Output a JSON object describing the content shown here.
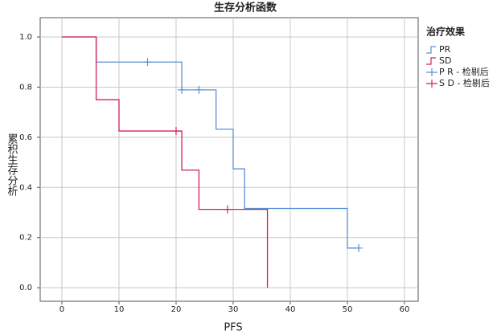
{
  "chart_data": {
    "type": "step",
    "title": "生存分析函数",
    "x_label": "PFS",
    "y_label": "累积生存分析",
    "legend_title": "治疗效果",
    "legend_position": "right",
    "grid": true,
    "xlim": [
      -3.8,
      62.4
    ],
    "xticks": [
      0,
      10,
      20,
      30,
      40,
      50,
      60
    ],
    "ylim": [
      -0.054,
      1.077
    ],
    "yticks": [
      {
        "value": 0,
        "label": "0.0"
      },
      0.2,
      0.4,
      0.6,
      0.8,
      {
        "value": 1,
        "label": "1.0"
      }
    ],
    "series": [
      {
        "name": "PR",
        "color": "#5b8fd6",
        "style": "step",
        "x": [
          0,
          6,
          21,
          27,
          30,
          32,
          50,
          52
        ],
        "values": [
          1,
          0.9,
          0.789,
          0.632,
          0.474,
          0.316,
          0.158,
          0.158
        ]
      },
      {
        "name": "SD",
        "color": "#d42250",
        "style": "step",
        "x": [
          0,
          6,
          10,
          21,
          24,
          36
        ],
        "values": [
          1,
          0.75,
          0.625,
          0.469,
          0.3125,
          0
        ]
      },
      {
        "name": "P R - 检剔后",
        "color": "#5b8fd6",
        "style": "censor",
        "x": [
          15,
          21,
          24,
          52
        ],
        "values": [
          0.9,
          0.789,
          0.789,
          0.158
        ]
      },
      {
        "name": "S D - 检剔后",
        "color": "#d42250",
        "style": "censor",
        "x": [
          20,
          29
        ],
        "values": [
          0.625,
          0.3125
        ]
      }
    ]
  }
}
